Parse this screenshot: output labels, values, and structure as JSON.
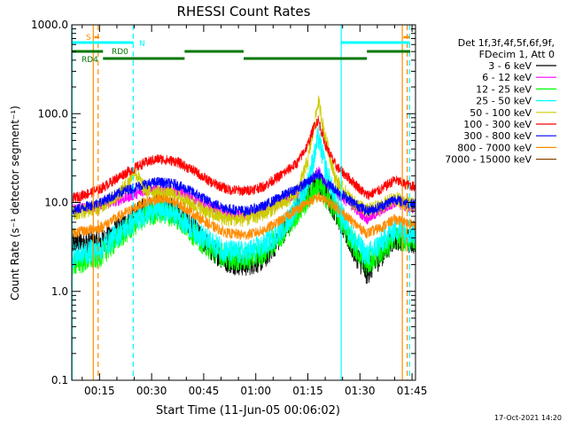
{
  "chart_data": {
    "type": "line",
    "title": "RHESSI Count Rates",
    "xlabel": "Start Time (11-Jun-05 00:06:02)",
    "ylabel": "Count Rate (s⁻¹ detector segment⁻¹)",
    "y_scale": "log",
    "ylim": [
      0.1,
      1000
    ],
    "xlim_minutes": [
      7,
      106
    ],
    "y_ticks": [
      {
        "value": 0.1,
        "label": "0.1"
      },
      {
        "value": 1,
        "label": "1.0"
      },
      {
        "value": 10,
        "label": "10.0"
      },
      {
        "value": 100,
        "label": "100.0"
      },
      {
        "value": 1000,
        "label": "1000.0"
      }
    ],
    "x_ticks": [
      {
        "value": 15,
        "label": "00:15"
      },
      {
        "value": 30,
        "label": "00:30"
      },
      {
        "value": 45,
        "label": "00:45"
      },
      {
        "value": 60,
        "label": "01:00"
      },
      {
        "value": 75,
        "label": "01:15"
      },
      {
        "value": 90,
        "label": "01:30"
      },
      {
        "value": 105,
        "label": "01:45"
      }
    ],
    "legend_header": [
      "Det 1f,3f,4f,5f,6f,9f,",
      "FDecim 1, Att 0"
    ],
    "series": [
      {
        "name": "3 - 6 keV",
        "color": "#000000",
        "x": [
          7,
          15,
          22,
          28,
          32,
          37,
          42,
          47,
          52,
          57,
          62,
          67,
          72,
          75,
          77,
          78,
          80,
          83,
          88,
          92,
          96,
          100,
          103,
          106
        ],
        "y": [
          3.5,
          3.5,
          5.5,
          8.5,
          9.5,
          8.0,
          5.0,
          3.0,
          2.2,
          2.0,
          2.3,
          4.0,
          9.0,
          13,
          16,
          18,
          13,
          8,
          3,
          1.6,
          2.5,
          4.0,
          3.8,
          3.5
        ]
      },
      {
        "name": "6 - 12 keV",
        "color": "#ff00ff",
        "x": [
          7,
          15,
          22,
          28,
          32,
          37,
          42,
          47,
          52,
          57,
          62,
          67,
          72,
          75,
          77,
          78,
          80,
          83,
          88,
          92,
          96,
          100,
          103,
          106
        ],
        "y": [
          8.5,
          9,
          11,
          13.5,
          14,
          13.5,
          11,
          9,
          7.5,
          7,
          8,
          10,
          13,
          17,
          20,
          23,
          17,
          13,
          9,
          6.5,
          8,
          10,
          9,
          8.5
        ]
      },
      {
        "name": "12 - 25 keV",
        "color": "#00ff00",
        "x": [
          7,
          15,
          22,
          28,
          32,
          37,
          42,
          47,
          52,
          57,
          62,
          67,
          72,
          75,
          77,
          78,
          80,
          83,
          88,
          92,
          96,
          100,
          103,
          106
        ],
        "y": [
          2.0,
          2.5,
          4.5,
          7.0,
          8.0,
          7.0,
          4.5,
          3.0,
          2.4,
          2.3,
          2.7,
          4.2,
          7.5,
          11,
          14,
          16,
          12,
          8,
          3.5,
          2.0,
          2.8,
          4.0,
          3.8,
          3.8
        ]
      },
      {
        "name": "25 - 50 keV",
        "color": "#00ffff",
        "x": [
          7,
          15,
          22,
          28,
          32,
          37,
          42,
          47,
          52,
          57,
          62,
          67,
          72,
          75,
          77,
          78,
          80,
          83,
          88,
          92,
          96,
          100,
          103,
          106
        ],
        "y": [
          2.5,
          3.0,
          5.0,
          7.5,
          8.5,
          7.5,
          5.0,
          3.5,
          2.8,
          2.7,
          3.2,
          4.8,
          9,
          17,
          35,
          55,
          25,
          10,
          4,
          2.5,
          3.5,
          5,
          4.8,
          4.5
        ]
      },
      {
        "name": "50 - 100 keV",
        "color": "#cccc00",
        "x": [
          7,
          15,
          20,
          23,
          25,
          28,
          32,
          37,
          42,
          47,
          52,
          57,
          62,
          67,
          72,
          75,
          77,
          78,
          80,
          83,
          88,
          92,
          96,
          100,
          103,
          106
        ],
        "y": [
          7.5,
          9,
          12,
          16,
          23,
          14,
          13,
          12,
          9.5,
          7.5,
          6.5,
          6.5,
          7.5,
          9.5,
          13,
          30,
          80,
          140,
          55,
          18,
          10,
          8,
          9,
          11,
          10,
          9
        ]
      },
      {
        "name": "100 - 300 keV",
        "color": "#ff0000",
        "x": [
          7,
          15,
          22,
          28,
          32,
          37,
          42,
          47,
          52,
          57,
          62,
          67,
          72,
          75,
          77,
          78,
          80,
          83,
          88,
          92,
          96,
          100,
          103,
          106
        ],
        "y": [
          11,
          14,
          21,
          28,
          31,
          29,
          23,
          17,
          14,
          13.5,
          15,
          20,
          28,
          45,
          75,
          85,
          45,
          26,
          17,
          12,
          14,
          18,
          16,
          15
        ]
      },
      {
        "name": "300 - 800 keV",
        "color": "#0000ff",
        "x": [
          7,
          15,
          22,
          28,
          32,
          37,
          42,
          47,
          52,
          57,
          62,
          67,
          72,
          75,
          77,
          78,
          80,
          83,
          88,
          92,
          96,
          100,
          103,
          106
        ],
        "y": [
          8,
          10,
          13.5,
          16,
          17,
          16,
          13,
          10,
          8.5,
          8,
          9,
          11.5,
          14.5,
          17,
          20,
          21,
          17,
          14,
          10,
          8,
          9,
          11,
          10,
          9.5
        ]
      },
      {
        "name": "800 - 7000 keV",
        "color": "#ff8c00",
        "x": [
          7,
          15,
          22,
          28,
          32,
          37,
          42,
          47,
          52,
          57,
          62,
          67,
          72,
          75,
          77,
          78,
          80,
          83,
          88,
          92,
          96,
          100,
          103,
          106
        ],
        "y": [
          4.5,
          5.2,
          7.5,
          10,
          11,
          10,
          7.5,
          5.5,
          4.5,
          4.3,
          4.8,
          6.2,
          8.5,
          10,
          11,
          11.5,
          10.5,
          9,
          6,
          4.5,
          5.2,
          6.5,
          6,
          5.5
        ]
      },
      {
        "name": "7000 - 15000 keV",
        "color": "#8b4500",
        "x": [],
        "y": []
      }
    ],
    "overlay_lines": [
      {
        "x": 7.1,
        "color": "#00ffff",
        "style": "solid"
      },
      {
        "x": 24.7,
        "color": "#00ffff",
        "style": "dashed"
      },
      {
        "x": 84.6,
        "color": "#00ffff",
        "style": "solid"
      },
      {
        "x": 104.3,
        "color": "#00ffff",
        "style": "dashed"
      },
      {
        "x": 13.2,
        "color": "#ff8c00",
        "style": "solid"
      },
      {
        "x": 14.6,
        "color": "#ff8c00",
        "style": "dashed"
      },
      {
        "x": 102.2,
        "color": "#ff8c00",
        "style": "solid"
      },
      {
        "x": 103.6,
        "color": "#ff8c00",
        "style": "dashed"
      }
    ],
    "flag_bars": [
      {
        "label": "S",
        "color": "#ff8c00",
        "segments": [
          [
            13.5,
            14.9
          ],
          [
            102.5,
            104.3
          ]
        ]
      },
      {
        "label": "N",
        "color": "#00ffff",
        "segments": [
          [
            7.0,
            24.7
          ],
          [
            84.6,
            104.3
          ]
        ]
      },
      {
        "label": "RD0",
        "color": "#007700",
        "segments": [
          [
            7.0,
            16.0
          ],
          [
            39.5,
            56.5
          ],
          [
            92.0,
            104.5
          ]
        ]
      },
      {
        "label": "RD4",
        "color": "#007700",
        "segments": [
          [
            16.0,
            39.5
          ],
          [
            56.5,
            92.0
          ]
        ]
      }
    ],
    "grid": false,
    "legend_position": "right"
  },
  "footer": {
    "date": "17-Oct-2021 14:20"
  }
}
